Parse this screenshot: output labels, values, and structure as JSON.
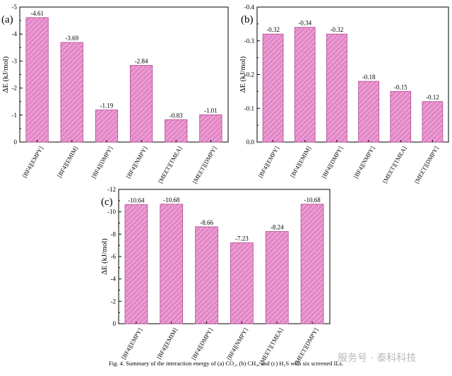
{
  "chart_data": [
    {
      "id": "a",
      "type": "bar",
      "panel_label": "(a)",
      "ylabel": "ΔE (kJ/mol)",
      "ylim": [
        0,
        -5
      ],
      "yticks": [
        "0",
        "-1",
        "-2",
        "-3",
        "-4",
        "-5"
      ],
      "categories": [
        "[BF4][EMPY]",
        "[BF4][EMIM]",
        "[BF4][DMPY]",
        "[BF4][NMPY]",
        "[MEET][TMEA]",
        "[MEET][DMPY]"
      ],
      "values": [
        -4.61,
        -3.69,
        -1.19,
        -2.84,
        -0.83,
        -1.01
      ],
      "labels": [
        "-4.61",
        "-3.69",
        "-1.19",
        "-2.84",
        "-0.83",
        "-1.01"
      ]
    },
    {
      "id": "b",
      "type": "bar",
      "panel_label": "(b)",
      "ylabel": "ΔE (kJ/mol)",
      "ylim": [
        0,
        -0.4
      ],
      "yticks": [
        "0.0",
        "-0.1",
        "-0.2",
        "-0.3",
        "-0.4"
      ],
      "categories": [
        "[BF4][EMPY]",
        "[BF4][EMIM]",
        "[BF4][DMPY]",
        "[BF4][NMPY]",
        "[MEET][TMEA]",
        "[MEET][DMPY]"
      ],
      "values": [
        -0.32,
        -0.34,
        -0.32,
        -0.18,
        -0.15,
        -0.12
      ],
      "labels": [
        "-0.32",
        "-0.34",
        "-0.32",
        "-0.18",
        "-0.15",
        "-0.12"
      ]
    },
    {
      "id": "c",
      "type": "bar",
      "panel_label": "(c)",
      "ylabel": "ΔE (kJ/mol)",
      "ylim": [
        0,
        -12
      ],
      "yticks": [
        "0",
        "-2",
        "-4",
        "-6",
        "-8",
        "-10",
        "-12"
      ],
      "categories": [
        "[BF4][EMPY]",
        "[BF4][EMIM]",
        "[BF4][DMPY]",
        "[BF4][NMPY]",
        "[MEET][TMEA]",
        "[MEET][DMPY]"
      ],
      "values": [
        -10.64,
        -10.68,
        -8.66,
        -7.23,
        -8.24,
        -10.68
      ],
      "labels": [
        "-10.64",
        "-10.68",
        "-8.66",
        "-7.23",
        "-8.24",
        "-10.68"
      ]
    }
  ],
  "style": {
    "bar_fill": "#e386c6",
    "bar_hatch": "#f4c8e6",
    "bar_edge": "#b04a92"
  },
  "caption": "Fig. 4.  Summary of the interaction energy of (a) CO₂, (b) CH₄, and (c) H₂S with six screened ILs.",
  "watermark": "服务号 · 泰科科技"
}
